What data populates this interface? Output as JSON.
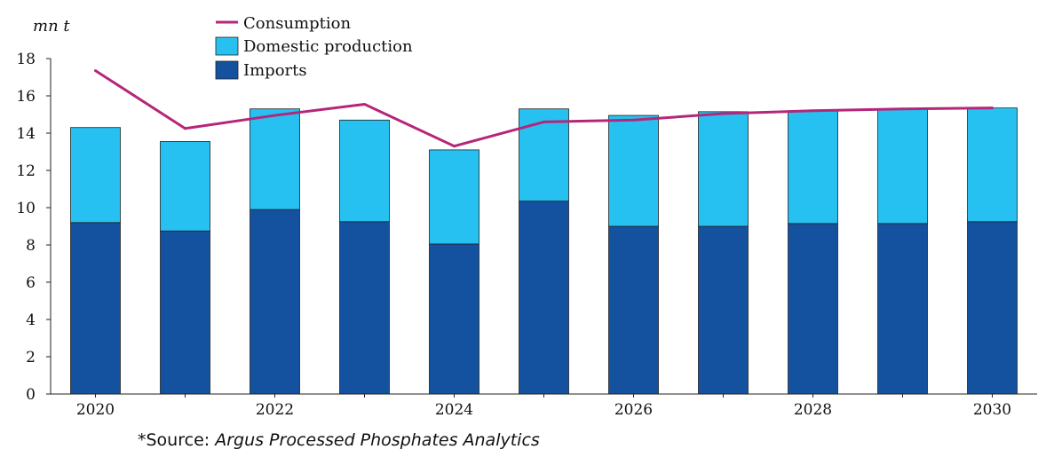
{
  "chart_data": {
    "type": "bar",
    "stacked": true,
    "ylabel": "mn t",
    "ylim": [
      0,
      18
    ],
    "yticks": [
      0,
      2,
      4,
      6,
      8,
      10,
      12,
      14,
      16,
      18
    ],
    "categories": [
      "2020",
      "2021",
      "2022",
      "2023",
      "2024",
      "2025",
      "2026",
      "2027",
      "2028",
      "2029",
      "2030"
    ],
    "xtick_labels": [
      "2020",
      "",
      "2022",
      "",
      "2024",
      "",
      "2026",
      "",
      "2028",
      "",
      "2030"
    ],
    "series": [
      {
        "name": "Imports",
        "type": "bar",
        "color": "#1452a0",
        "values": [
          9.2,
          8.75,
          9.9,
          9.25,
          8.05,
          10.35,
          9.0,
          9.0,
          9.15,
          9.15,
          9.25
        ]
      },
      {
        "name": "Domestic production",
        "type": "bar",
        "color": "#26c1f0",
        "values": [
          5.1,
          4.8,
          5.4,
          5.45,
          5.05,
          4.95,
          5.95,
          6.15,
          6.05,
          6.15,
          6.1
        ]
      },
      {
        "name": "Consumption",
        "type": "line",
        "color": "#b5267a",
        "values": [
          17.35,
          14.25,
          14.95,
          15.55,
          13.3,
          14.6,
          14.7,
          15.05,
          15.2,
          15.3,
          15.35
        ]
      }
    ],
    "legend": {
      "position": "top-center",
      "items": [
        {
          "label": "Consumption",
          "kind": "line",
          "color": "#b5267a"
        },
        {
          "label": "Domestic production",
          "kind": "box",
          "color": "#26c1f0"
        },
        {
          "label": "Imports",
          "kind": "box",
          "color": "#1452a0"
        }
      ]
    },
    "source": {
      "prefix": "*Source: ",
      "name": "Argus Processed Phosphates Analytics"
    }
  }
}
